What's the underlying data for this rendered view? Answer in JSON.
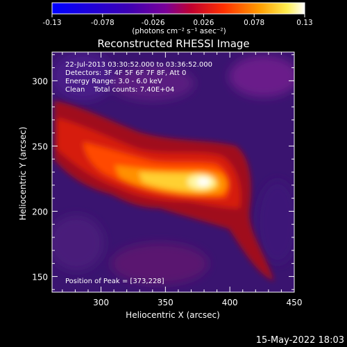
{
  "colorbar": {
    "ticks": [
      "-0.13",
      "-0.078",
      "-0.026",
      "0.026",
      "0.078",
      "0.13"
    ],
    "tick_values": [
      -0.13,
      -0.078,
      -0.026,
      0.026,
      0.078,
      0.13
    ],
    "units_label": "(photons cm⁻² s⁻¹ asec⁻²)",
    "range": [
      -0.13,
      0.13
    ],
    "colormap": "blue-purple-red-orange-yellow-white",
    "colors": [
      "#0000ff",
      "#5a00c8",
      "#b40050",
      "#ff2a00",
      "#ff9a00",
      "#ffff80",
      "#ffffff"
    ]
  },
  "title": "Reconstructed RHESSI Image",
  "info": {
    "time_range": "22-Jul-2013 03:30:52.000 to 03:36:52.000",
    "detectors": "Detectors: 3F 4F 5F 6F 7F 8F, Att 0",
    "energy": "Energy Range: 3.0 - 6.0 keV",
    "clean": "Clean    Total counts: 7.40E+04",
    "peak": "Position of Peak = [373,228]"
  },
  "footer_date": "15-May-2022 18:03",
  "chart_data": {
    "type": "heatmap",
    "title": "Reconstructed RHESSI Image",
    "xlabel": "Heliocentric X (arcsec)",
    "ylabel": "Heliocentric Y (arcsec)",
    "xlim": [
      262,
      450
    ],
    "ylim": [
      138,
      322
    ],
    "x_ticks": [
      300,
      350,
      400,
      450
    ],
    "y_ticks": [
      150,
      200,
      250,
      300
    ],
    "z_range": [
      -0.13,
      0.13
    ],
    "peak": [
      373,
      228
    ],
    "source_ridge": [
      {
        "x": 270,
        "y": 255,
        "value": 0.04
      },
      {
        "x": 300,
        "y": 245,
        "value": 0.07
      },
      {
        "x": 330,
        "y": 235,
        "value": 0.1
      },
      {
        "x": 350,
        "y": 232,
        "value": 0.115
      },
      {
        "x": 373,
        "y": 228,
        "value": 0.13
      },
      {
        "x": 395,
        "y": 222,
        "value": 0.08
      },
      {
        "x": 410,
        "y": 210,
        "value": 0.05
      }
    ]
  }
}
